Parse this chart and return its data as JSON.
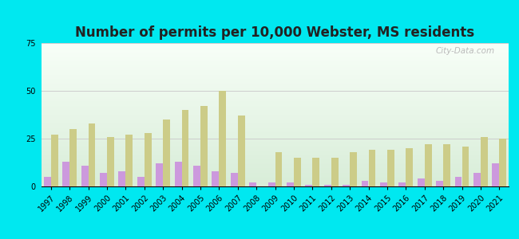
{
  "title": "Number of permits per 10,000 Webster, MS residents",
  "years": [
    1997,
    1998,
    1999,
    2000,
    2001,
    2002,
    2003,
    2004,
    2005,
    2006,
    2007,
    2008,
    2009,
    2010,
    2011,
    2012,
    2013,
    2014,
    2015,
    2016,
    2017,
    2018,
    2019,
    2020,
    2021
  ],
  "webster_county": [
    5,
    13,
    11,
    7,
    8,
    5,
    12,
    13,
    11,
    8,
    7,
    2,
    2,
    2,
    1,
    1,
    1,
    3,
    2,
    2,
    4,
    3,
    5,
    7,
    12
  ],
  "ms_average": [
    27,
    30,
    33,
    26,
    27,
    28,
    35,
    40,
    42,
    50,
    37,
    0,
    18,
    15,
    15,
    15,
    18,
    19,
    19,
    20,
    22,
    22,
    21,
    26,
    25
  ],
  "webster_color": "#cc99dd",
  "ms_color": "#cccc88",
  "outer_bg": "#00e8f0",
  "plot_bg_top": "#f8fff8",
  "plot_bg_bottom": "#d8edd8",
  "ylim": [
    0,
    75
  ],
  "yticks": [
    0,
    25,
    50,
    75
  ],
  "bar_width": 0.38,
  "title_fontsize": 12,
  "tick_fontsize": 7,
  "legend_fontsize": 9,
  "grid_color": "#cccccc",
  "watermark": "City-Data.com"
}
